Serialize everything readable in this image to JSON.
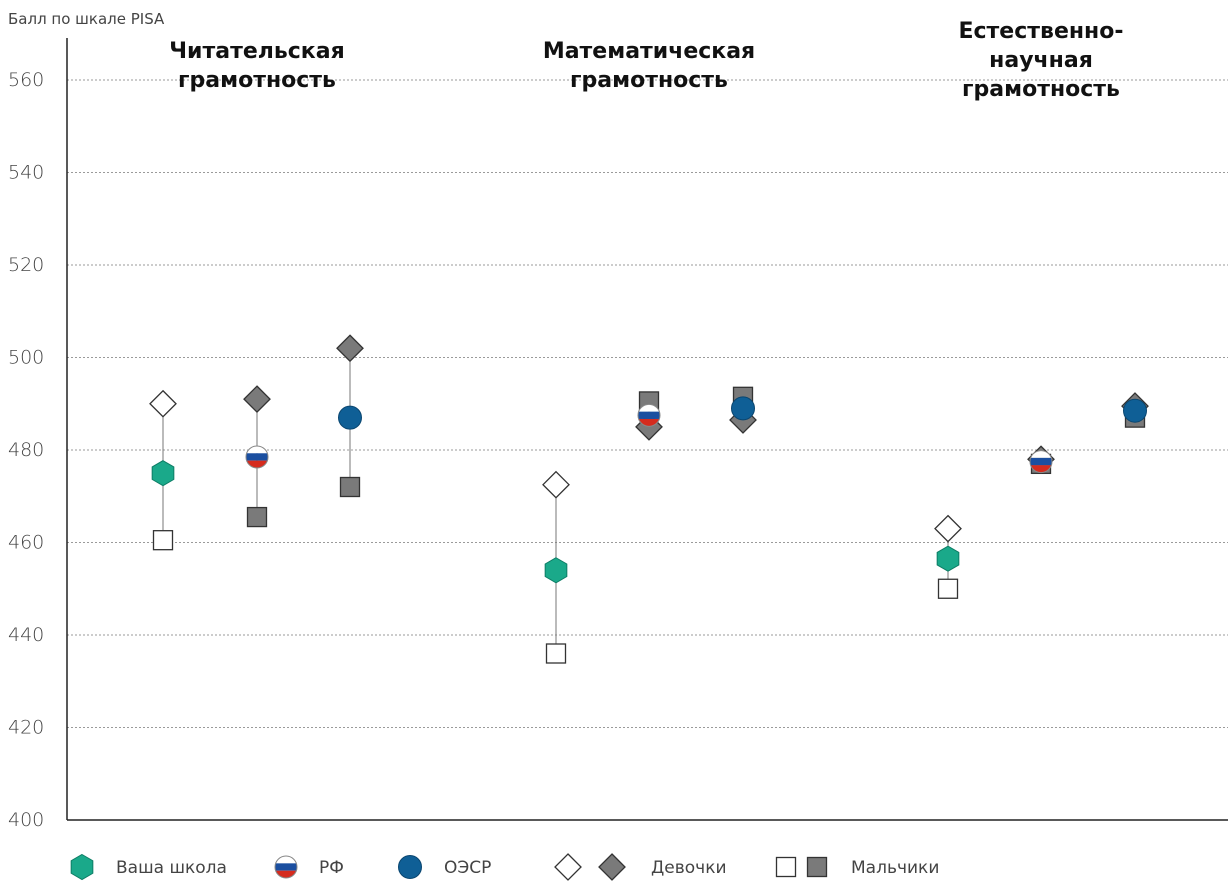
{
  "chart_data": {
    "type": "scatter",
    "ylabel": "Балл по шкале PISA",
    "ylim": [
      400,
      570
    ],
    "yticks": [
      400,
      420,
      440,
      460,
      480,
      500,
      520,
      540,
      560
    ],
    "grid": true,
    "groups": [
      {
        "title_lines": [
          "Читательская",
          "грамотность"
        ],
        "entries": [
          {
            "entity": "Ваша школа",
            "marker": "hexagon",
            "color": "#1aa98a",
            "girls": 490,
            "boys": 460.5,
            "mean": 475
          },
          {
            "entity": "РФ",
            "marker": "flag",
            "girls": 491,
            "boys": 465.5,
            "mean": 478.5
          },
          {
            "entity": "ОЭСР",
            "marker": "circle",
            "color": "#0f5f96",
            "girls": 502,
            "boys": 472,
            "mean": 487
          }
        ]
      },
      {
        "title_lines": [
          "Математическая",
          "грамотность"
        ],
        "entries": [
          {
            "entity": "Ваша школа",
            "marker": "hexagon",
            "color": "#1aa98a",
            "girls": 472.5,
            "boys": 436,
            "mean": 454
          },
          {
            "entity": "РФ",
            "marker": "flag",
            "girls": 485,
            "boys": 490.5,
            "mean": 487.5
          },
          {
            "entity": "ОЭСР",
            "marker": "circle",
            "color": "#0f5f96",
            "girls": 486.5,
            "boys": 491.5,
            "mean": 489
          }
        ]
      },
      {
        "title_lines": [
          "Естественно-",
          "научная",
          "грамотность"
        ],
        "entries": [
          {
            "entity": "Ваша школа",
            "marker": "hexagon",
            "color": "#1aa98a",
            "girls": 463,
            "boys": 450,
            "mean": 456.5
          },
          {
            "entity": "РФ",
            "marker": "flag",
            "girls": 478,
            "boys": 477,
            "mean": 477.5
          },
          {
            "entity": "ОЭСР",
            "marker": "circle",
            "color": "#0f5f96",
            "girls": 489.5,
            "boys": 487,
            "mean": 488.5
          }
        ]
      }
    ],
    "legend": [
      {
        "label": "Ваша школа",
        "marker": "hexagon"
      },
      {
        "label": "РФ",
        "marker": "flag"
      },
      {
        "label": "ОЭСР",
        "marker": "circle"
      },
      {
        "label": "Девочки",
        "marker": "diamond-pair"
      },
      {
        "label": "Мальчики",
        "marker": "square-pair"
      }
    ],
    "legend_position": "bottom",
    "colors": {
      "school": "#1aa98a",
      "oecd": "#0f5f96",
      "gray_fill": "#7a7a7a",
      "flag_white": "#ffffff",
      "flag_blue": "#1b4fa0",
      "flag_red": "#d52b1e"
    }
  }
}
